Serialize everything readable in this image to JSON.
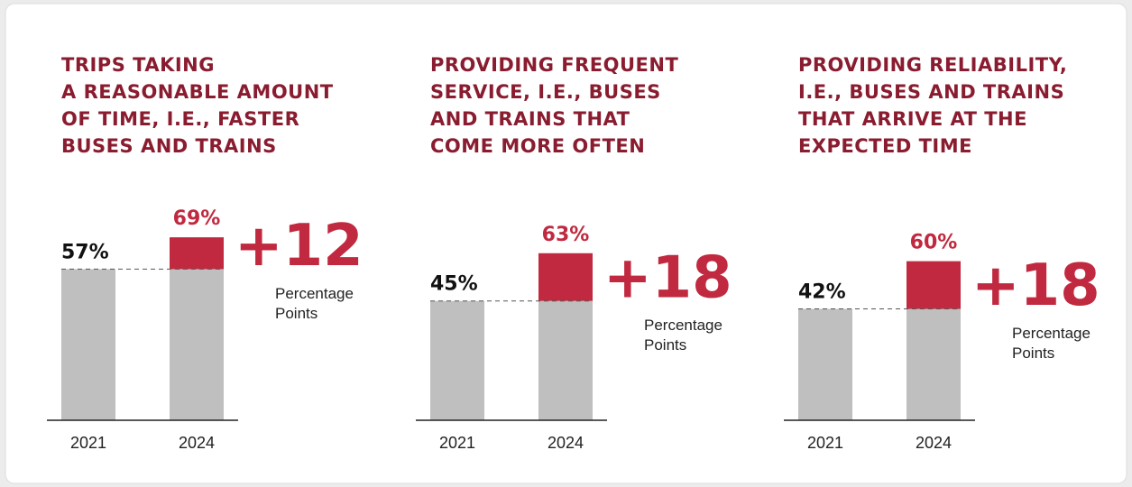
{
  "chart_data": [
    {
      "type": "bar",
      "title": [
        "TRIPS TAKING",
        "A REASONABLE AMOUNT",
        "OF TIME, I.E., FASTER",
        "BUSES AND TRAINS"
      ],
      "categories": [
        "2021",
        "2024"
      ],
      "values": [
        57,
        69
      ],
      "value_labels": [
        "57%",
        "69%"
      ],
      "change": "+12",
      "change_note": [
        "Percentage",
        "Points"
      ],
      "color": "#bfbfbf",
      "increase_color": "#c0293f"
    },
    {
      "type": "bar",
      "title": [
        "PROVIDING FREQUENT",
        "SERVICE, I.E., BUSES",
        "AND TRAINS THAT",
        "COME MORE OFTEN"
      ],
      "categories": [
        "2021",
        "2024"
      ],
      "values": [
        45,
        63
      ],
      "value_labels": [
        "45%",
        "63%"
      ],
      "change": "+18",
      "change_note": [
        "Percentage",
        "Points"
      ],
      "color": "#bfbfbf",
      "increase_color": "#c0293f"
    },
    {
      "type": "bar",
      "title": [
        "PROVIDING RELIABILITY,",
        "I.E., BUSES AND TRAINS",
        "THAT ARRIVE AT THE",
        "EXPECTED TIME"
      ],
      "categories": [
        "2021",
        "2024"
      ],
      "values": [
        42,
        60
      ],
      "value_labels": [
        "42%",
        "60%"
      ],
      "change": "+18",
      "change_note": [
        "Percentage",
        "Points"
      ],
      "color": "#bfbfbf",
      "increase_color": "#c0293f"
    }
  ]
}
